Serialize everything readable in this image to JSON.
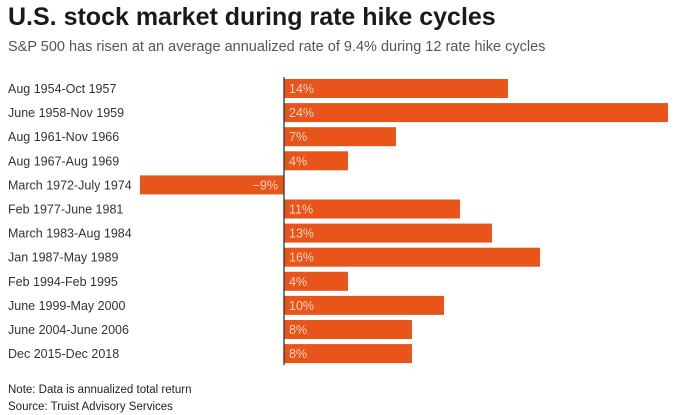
{
  "header": {
    "title": "U.S. stock market during rate hike cycles",
    "subtitle": "S&P 500 has risen at an average annualized rate of 9.4% during 12 rate hike cycles"
  },
  "footer": {
    "note": "Note: Data is annualized total return",
    "source": "Source: Truist Advisory Services"
  },
  "colors": {
    "bar": "#e8541a",
    "axis": "#333333",
    "category_text": "#333333",
    "value_text_on_bar": "#fbd3c3"
  },
  "chart_data": {
    "type": "bar",
    "orientation": "horizontal",
    "title": "U.S. stock market during rate hike cycles",
    "subtitle": "S&P 500 has risen at an average annualized rate of 9.4% during 12 rate hike cycles",
    "xlabel": "",
    "ylabel": "",
    "unit": "%",
    "xlim": [
      -9,
      24
    ],
    "grid": false,
    "categories": [
      "Aug 1954-Oct 1957",
      "June 1958-Nov 1959",
      "Aug 1961-Nov 1966",
      "Aug 1967-Aug 1969",
      "March 1972-July 1974",
      "Feb 1977-June 1981",
      "March 1983-Aug 1984",
      "Jan 1987-May 1989",
      "Feb 1994-Feb 1995",
      "June 1999-May 2000",
      "June 2004-June 2006",
      "Dec 2015-Dec 2018"
    ],
    "values": [
      14,
      24,
      7,
      4,
      -9,
      11,
      13,
      16,
      4,
      10,
      8,
      8
    ],
    "labels": [
      "14%",
      "24%",
      "7%",
      "4%",
      "−9%",
      "11%",
      "13%",
      "16%",
      "4%",
      "10%",
      "8%",
      "8%"
    ]
  }
}
